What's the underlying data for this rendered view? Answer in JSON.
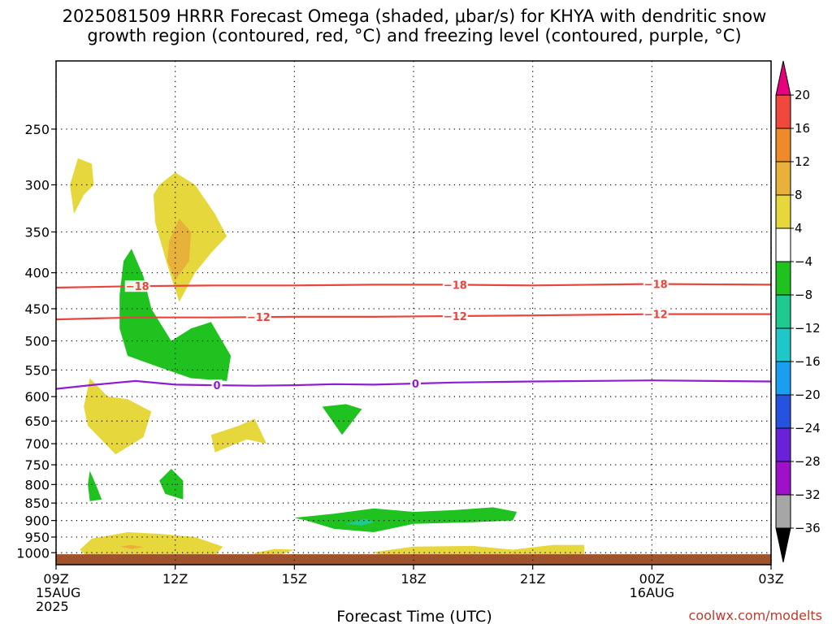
{
  "chart_data": {
    "type": "heatmap",
    "title_lines": [
      "2025081509 HRRR Forecast Omega (shaded, μbar/s) for KHYA with dendritic snow",
      "growth region (contoured, red, °C) and freezing level (contoured, purple, °C)"
    ],
    "xlabel": "Forecast Time (UTC)",
    "x_ticks": [
      {
        "hour": 0,
        "lines": [
          "09Z",
          "15AUG",
          "2025"
        ]
      },
      {
        "hour": 3,
        "lines": [
          "12Z"
        ]
      },
      {
        "hour": 6,
        "lines": [
          "15Z"
        ]
      },
      {
        "hour": 9,
        "lines": [
          "18Z"
        ]
      },
      {
        "hour": 12,
        "lines": [
          "21Z"
        ]
      },
      {
        "hour": 15,
        "lines": [
          "00Z",
          "16AUG"
        ]
      },
      {
        "hour": 18,
        "lines": [
          "03Z"
        ]
      }
    ],
    "xlim": [
      0,
      18
    ],
    "ylim": [
      1040,
      200
    ],
    "y_scale": "log-pressure",
    "y_ticks": [
      250,
      300,
      350,
      400,
      450,
      500,
      550,
      600,
      650,
      700,
      750,
      800,
      850,
      900,
      950,
      1000
    ],
    "grid": true,
    "colorbar": {
      "labels": [
        "20",
        "16",
        "12",
        "8",
        "4",
        "−4",
        "−8",
        "−12",
        "−16",
        "−20",
        "−24",
        "−28",
        "−32",
        "−36"
      ],
      "colors": [
        "#f0483c",
        "#ef8a2a",
        "#e8b23a",
        "#e6d83c",
        "#ffffff",
        "#1fc21f",
        "#20c98f",
        "#1fc8c8",
        "#1a9ef0",
        "#2553e0",
        "#6a22d6",
        "#9d12c8",
        "#a6a6a6"
      ],
      "top_arrow_color": "#e6007e",
      "bottom_arrow_color": "#000000"
    },
    "omega_regions": [
      {
        "value": 6,
        "color": "#e6d83c",
        "points": [
          [
            0.55,
            275
          ],
          [
            0.9,
            280
          ],
          [
            0.95,
            300
          ],
          [
            0.7,
            310
          ],
          [
            0.45,
            330
          ],
          [
            0.35,
            300
          ]
        ]
      },
      {
        "value": 6,
        "color": "#e6d83c",
        "points": [
          [
            2.6,
            300
          ],
          [
            3.0,
            288
          ],
          [
            3.5,
            300
          ],
          [
            4.0,
            330
          ],
          [
            4.3,
            355
          ],
          [
            3.9,
            375
          ],
          [
            3.5,
            400
          ],
          [
            3.1,
            440
          ],
          [
            2.8,
            390
          ],
          [
            2.5,
            340
          ],
          [
            2.45,
            310
          ]
        ]
      },
      {
        "value": 10,
        "color": "#e8b23a",
        "points": [
          [
            2.85,
            360
          ],
          [
            3.1,
            335
          ],
          [
            3.4,
            350
          ],
          [
            3.35,
            385
          ],
          [
            3.0,
            410
          ],
          [
            2.8,
            385
          ]
        ]
      },
      {
        "value": -6,
        "color": "#1fc21f",
        "points": [
          [
            1.9,
            370
          ],
          [
            2.2,
            405
          ],
          [
            2.4,
            450
          ],
          [
            2.9,
            500
          ],
          [
            3.4,
            480
          ],
          [
            3.9,
            470
          ],
          [
            4.4,
            525
          ],
          [
            4.3,
            570
          ],
          [
            3.4,
            565
          ],
          [
            2.6,
            545
          ],
          [
            1.8,
            525
          ],
          [
            1.6,
            480
          ],
          [
            1.6,
            430
          ],
          [
            1.7,
            385
          ]
        ]
      },
      {
        "value": 6,
        "color": "#e6d83c",
        "points": [
          [
            0.85,
            565
          ],
          [
            1.3,
            600
          ],
          [
            1.8,
            605
          ],
          [
            2.4,
            630
          ],
          [
            2.2,
            685
          ],
          [
            1.5,
            725
          ],
          [
            0.8,
            660
          ],
          [
            0.7,
            620
          ]
        ]
      },
      {
        "value": 6,
        "color": "#e6d83c",
        "points": [
          [
            3.9,
            680
          ],
          [
            4.6,
            660
          ],
          [
            5.0,
            645
          ],
          [
            5.3,
            700
          ],
          [
            4.8,
            690
          ],
          [
            4.0,
            720
          ]
        ]
      },
      {
        "value": -6,
        "color": "#1fc21f",
        "points": [
          [
            6.7,
            620
          ],
          [
            7.3,
            615
          ],
          [
            7.7,
            625
          ],
          [
            7.2,
            680
          ]
        ]
      },
      {
        "value": -6,
        "color": "#1fc21f",
        "points": [
          [
            0.85,
            765
          ],
          [
            1.0,
            800
          ],
          [
            1.15,
            840
          ],
          [
            0.85,
            845
          ],
          [
            0.8,
            800
          ]
        ]
      },
      {
        "value": -6,
        "color": "#1fc21f",
        "points": [
          [
            2.9,
            760
          ],
          [
            3.2,
            790
          ],
          [
            3.2,
            840
          ],
          [
            2.75,
            825
          ],
          [
            2.6,
            790
          ]
        ]
      },
      {
        "value": -6,
        "color": "#1fc21f",
        "points": [
          [
            6.0,
            892
          ],
          [
            7.0,
            880
          ],
          [
            8.0,
            865
          ],
          [
            9.0,
            875
          ],
          [
            10.0,
            870
          ],
          [
            11.0,
            862
          ],
          [
            11.6,
            875
          ],
          [
            11.5,
            900
          ],
          [
            10.5,
            905
          ],
          [
            9.0,
            910
          ],
          [
            8.0,
            935
          ],
          [
            7.0,
            925
          ],
          [
            6.3,
            900
          ]
        ]
      },
      {
        "value": -10,
        "color": "#20c98f",
        "points": [
          [
            7.5,
            903
          ],
          [
            7.8,
            895
          ],
          [
            8.0,
            905
          ],
          [
            7.7,
            915
          ],
          [
            7.3,
            910
          ]
        ]
      },
      {
        "value": 6,
        "color": "#e6d83c",
        "points": [
          [
            0.6,
            990
          ],
          [
            0.9,
            955
          ],
          [
            1.8,
            935
          ],
          [
            2.6,
            940
          ],
          [
            3.5,
            950
          ],
          [
            4.2,
            980
          ],
          [
            4.0,
            1010
          ],
          [
            3.0,
            1015
          ],
          [
            1.8,
            1015
          ],
          [
            0.8,
            1015
          ]
        ]
      },
      {
        "value": 10,
        "color": "#e8b23a",
        "points": [
          [
            1.6,
            980
          ],
          [
            1.9,
            975
          ],
          [
            2.2,
            982
          ],
          [
            1.9,
            988
          ]
        ]
      },
      {
        "value": 6,
        "color": "#e6d83c",
        "points": [
          [
            5.0,
            1000
          ],
          [
            5.5,
            988
          ],
          [
            6.0,
            990
          ],
          [
            5.5,
            1015
          ],
          [
            5.0,
            1015
          ]
        ]
      },
      {
        "value": 6,
        "color": "#e6d83c",
        "points": [
          [
            8.0,
            998
          ],
          [
            9.0,
            980
          ],
          [
            10.5,
            978
          ],
          [
            11.5,
            990
          ],
          [
            12.5,
            975
          ],
          [
            13.3,
            975
          ],
          [
            13.3,
            1015
          ],
          [
            12.0,
            1015
          ],
          [
            11.0,
            1015
          ],
          [
            8.2,
            1015
          ]
        ]
      }
    ],
    "surface": {
      "color": "#a0522d",
      "points": [
        [
          0,
          1005
        ],
        [
          18,
          1005
        ],
        [
          18,
          1040
        ],
        [
          0,
          1040
        ]
      ]
    },
    "contours": [
      {
        "value": -18,
        "label": "−18",
        "color": "#e8453c",
        "points": [
          [
            0,
            420
          ],
          [
            2,
            418
          ],
          [
            4,
            417
          ],
          [
            6,
            417
          ],
          [
            8,
            416
          ],
          [
            10,
            416
          ],
          [
            12,
            417
          ],
          [
            15,
            415
          ],
          [
            18,
            416
          ]
        ],
        "label_hours": [
          2.05,
          10.05,
          15.1
        ]
      },
      {
        "value": -12,
        "label": "−12",
        "color": "#e8453c",
        "points": [
          [
            0,
            466
          ],
          [
            2,
            463
          ],
          [
            4,
            463
          ],
          [
            6,
            462
          ],
          [
            8,
            462
          ],
          [
            10,
            461
          ],
          [
            12,
            460
          ],
          [
            15,
            458
          ],
          [
            18,
            458
          ]
        ],
        "label_hours": [
          5.1,
          10.05,
          15.1
        ]
      },
      {
        "value": 0,
        "label": "0",
        "color": "#8e1fd0",
        "points": [
          [
            0,
            585
          ],
          [
            1,
            577
          ],
          [
            2,
            570
          ],
          [
            3,
            577
          ],
          [
            4,
            578
          ],
          [
            5,
            579
          ],
          [
            6,
            578
          ],
          [
            7,
            576
          ],
          [
            8,
            577
          ],
          [
            9,
            575
          ],
          [
            10,
            573
          ],
          [
            12,
            571
          ],
          [
            15,
            569
          ],
          [
            18,
            571
          ]
        ],
        "label_hours": [
          4.05,
          9.05
        ]
      }
    ],
    "credit": "coolwx.com/modelts"
  }
}
